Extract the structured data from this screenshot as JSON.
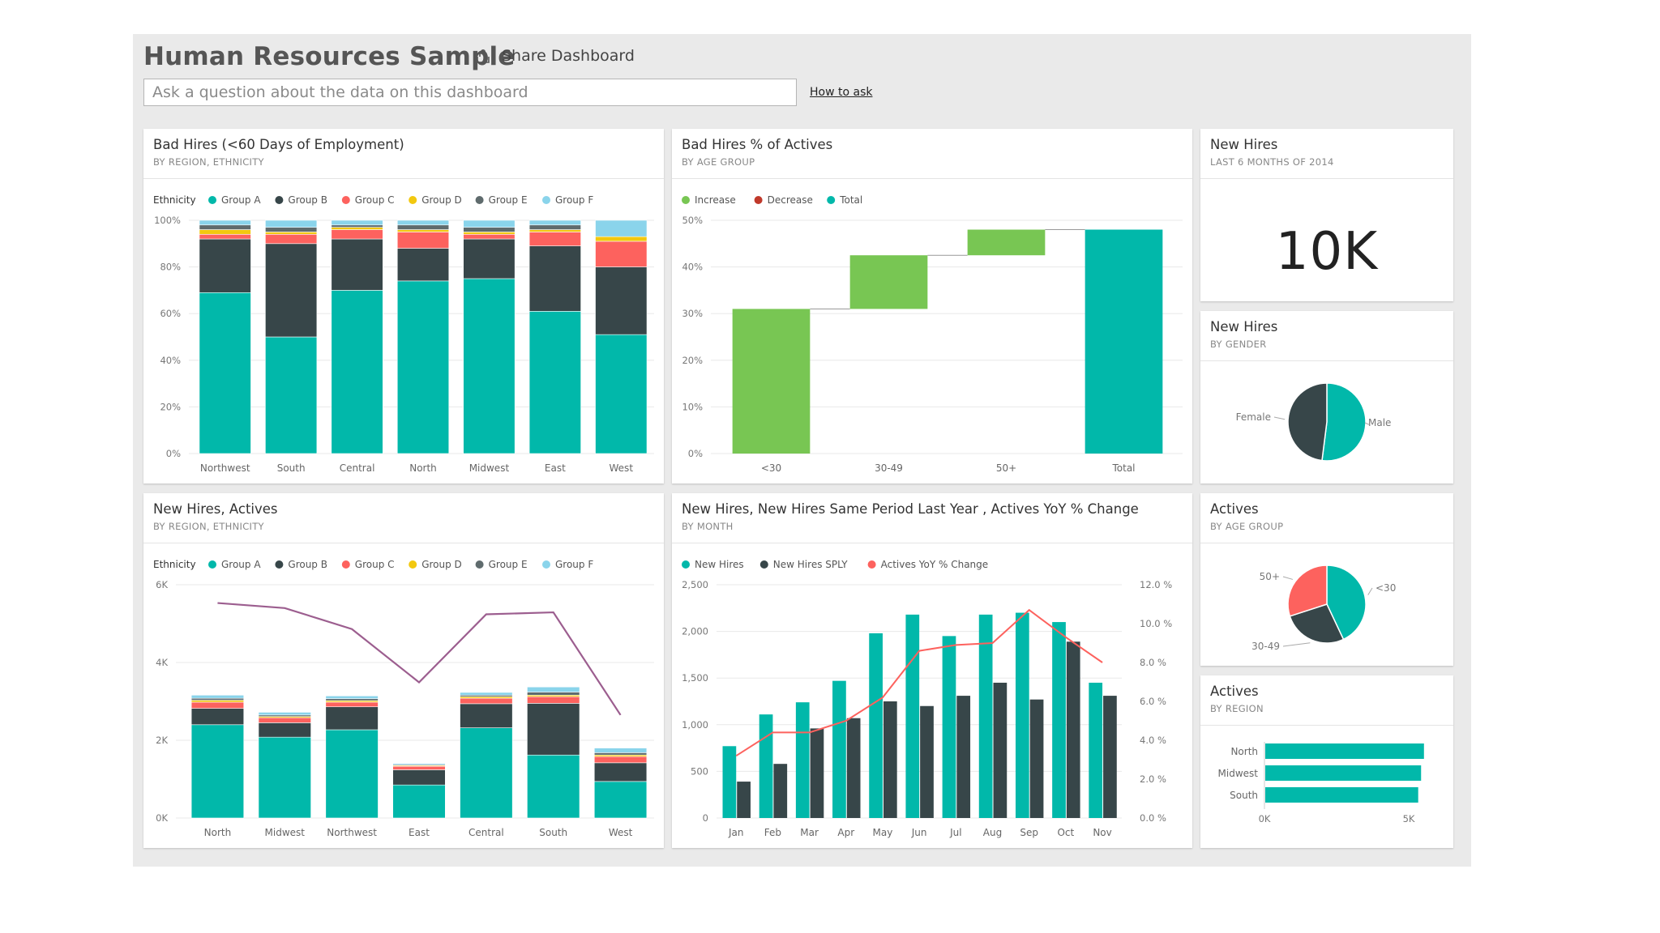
{
  "dashboard": {
    "title": "Human Resources Sample",
    "share_label": "Share Dashboard",
    "qa_placeholder": "Ask a question about the data on this dashboard",
    "how_to_ask": "How to ask"
  },
  "colors": {
    "group_a": "#01b8aa",
    "group_b": "#374649",
    "group_c": "#fd625e",
    "group_d": "#f2c80f",
    "group_e": "#5f6b6d",
    "group_f": "#8ad4eb",
    "increase": "#78c653",
    "decrease": "#c0392b",
    "total": "#01b8aa",
    "new_hires": "#01b8aa",
    "new_hires_sply": "#374649",
    "yoy": "#fd625e",
    "actives_line": "#9c5e8f"
  },
  "tiles": {
    "bad_hires": {
      "title": "Bad Hires (<60 Days of Employment)",
      "subtitle": "BY REGION, ETHNICITY"
    },
    "bad_hires_pct": {
      "title": "Bad Hires % of Actives",
      "subtitle": "BY AGE GROUP"
    },
    "new_hires_total": {
      "title": "New Hires",
      "subtitle": "LAST 6 MONTHS OF 2014",
      "value": "10K"
    },
    "new_hires_gender": {
      "title": "New Hires",
      "subtitle": "BY GENDER"
    },
    "new_hires_actives": {
      "title": "New Hires, Actives",
      "subtitle": "BY REGION, ETHNICITY"
    },
    "new_hires_month": {
      "title": "New Hires, New Hires Same Period Last Year , Actives YoY % Change",
      "subtitle": "BY MONTH"
    },
    "actives_age": {
      "title": "Actives",
      "subtitle": "BY AGE GROUP"
    },
    "actives_region": {
      "title": "Actives",
      "subtitle": "BY REGION"
    }
  },
  "chart_data": [
    {
      "id": "bad_hires",
      "type": "bar",
      "stacked": true,
      "legend_title": "Ethnicity",
      "categories": [
        "Northwest",
        "South",
        "Central",
        "North",
        "Midwest",
        "East",
        "West"
      ],
      "yticks": [
        "0%",
        "20%",
        "40%",
        "60%",
        "80%",
        "100%"
      ],
      "ylim": [
        0,
        100
      ],
      "series": [
        {
          "name": "Group A",
          "values": [
            69,
            50,
            70,
            74,
            75,
            61,
            51
          ]
        },
        {
          "name": "Group B",
          "values": [
            23,
            40,
            22,
            14,
            17,
            28,
            29
          ]
        },
        {
          "name": "Group C",
          "values": [
            2,
            4,
            4,
            7,
            2,
            6,
            11
          ]
        },
        {
          "name": "Group D",
          "values": [
            2,
            1,
            1,
            1,
            1,
            1,
            2
          ]
        },
        {
          "name": "Group E",
          "values": [
            2,
            2,
            1,
            2,
            2,
            2,
            0
          ]
        },
        {
          "name": "Group F",
          "values": [
            2,
            3,
            2,
            2,
            3,
            2,
            7
          ]
        }
      ]
    },
    {
      "id": "bad_hires_pct",
      "type": "waterfall",
      "legend": [
        "Increase",
        "Decrease",
        "Total"
      ],
      "categories": [
        "<30",
        "30-49",
        "50+",
        "Total"
      ],
      "steps": [
        31,
        11.5,
        5.5,
        48
      ],
      "yticks": [
        "0%",
        "10%",
        "20%",
        "30%",
        "40%",
        "50%"
      ],
      "ylim": [
        0,
        50
      ]
    },
    {
      "id": "new_hires_gender",
      "type": "pie",
      "labels": [
        "Male",
        "Female"
      ],
      "values": [
        52,
        48
      ]
    },
    {
      "id": "new_hires_actives",
      "type": "bar",
      "stacked": true,
      "legend_title": "Ethnicity",
      "categories": [
        "North",
        "Midwest",
        "Northwest",
        "East",
        "Central",
        "South",
        "West"
      ],
      "yticks": [
        "0K",
        "2K",
        "4K",
        "6K"
      ],
      "ylim": [
        0,
        6000
      ],
      "series": [
        {
          "name": "Group A",
          "values": [
            2400,
            2080,
            2270,
            850,
            2320,
            1620,
            940
          ]
        },
        {
          "name": "Group B",
          "values": [
            420,
            370,
            590,
            390,
            620,
            1330,
            480
          ]
        },
        {
          "name": "Group C",
          "values": [
            160,
            130,
            120,
            90,
            140,
            170,
            160
          ]
        },
        {
          "name": "Group D",
          "values": [
            50,
            30,
            40,
            20,
            40,
            40,
            40
          ]
        },
        {
          "name": "Group E",
          "values": [
            50,
            40,
            50,
            20,
            40,
            80,
            60
          ]
        },
        {
          "name": "Group F",
          "values": [
            80,
            70,
            70,
            30,
            70,
            130,
            120
          ]
        }
      ],
      "line": {
        "values": [
          5530,
          5400,
          4860,
          3490,
          5240,
          5290,
          2650
        ]
      }
    },
    {
      "id": "new_hires_month",
      "type": "bar",
      "categories": [
        "Jan",
        "Feb",
        "Mar",
        "Apr",
        "May",
        "Jun",
        "Jul",
        "Aug",
        "Sep",
        "Oct",
        "Nov"
      ],
      "legend": [
        "New Hires",
        "New Hires SPLY",
        "Actives YoY % Change"
      ],
      "yticks": [
        "0",
        "500",
        "1,000",
        "1,500",
        "2,000",
        "2,500"
      ],
      "ylim": [
        0,
        2500
      ],
      "y2ticks": [
        "0.0 %",
        "2.0 %",
        "4.0 %",
        "6.0 %",
        "8.0 %",
        "10.0 %",
        "12.0 %"
      ],
      "y2lim": [
        0,
        12
      ],
      "series": [
        {
          "name": "New Hires",
          "values": [
            770,
            1110,
            1240,
            1470,
            1980,
            2180,
            1950,
            2180,
            2200,
            2100,
            1450
          ]
        },
        {
          "name": "New Hires SPLY",
          "values": [
            390,
            580,
            960,
            1070,
            1250,
            1200,
            1310,
            1450,
            1270,
            1890,
            1310
          ]
        },
        {
          "name": "Actives YoY % Change",
          "values": [
            3.2,
            4.4,
            4.4,
            5.0,
            6.2,
            8.6,
            8.9,
            9.0,
            10.7,
            9.3,
            8.0
          ]
        }
      ]
    },
    {
      "id": "actives_age",
      "type": "pie",
      "labels": [
        "<30",
        "30-49",
        "50+"
      ],
      "values": [
        43,
        27,
        30
      ]
    },
    {
      "id": "actives_region",
      "type": "bar",
      "orientation": "horizontal",
      "categories": [
        "North",
        "Midwest",
        "South"
      ],
      "values": [
        5500,
        5400,
        5300
      ],
      "xticks": [
        "0K",
        "5K"
      ],
      "xlim": [
        0,
        5000
      ]
    }
  ]
}
